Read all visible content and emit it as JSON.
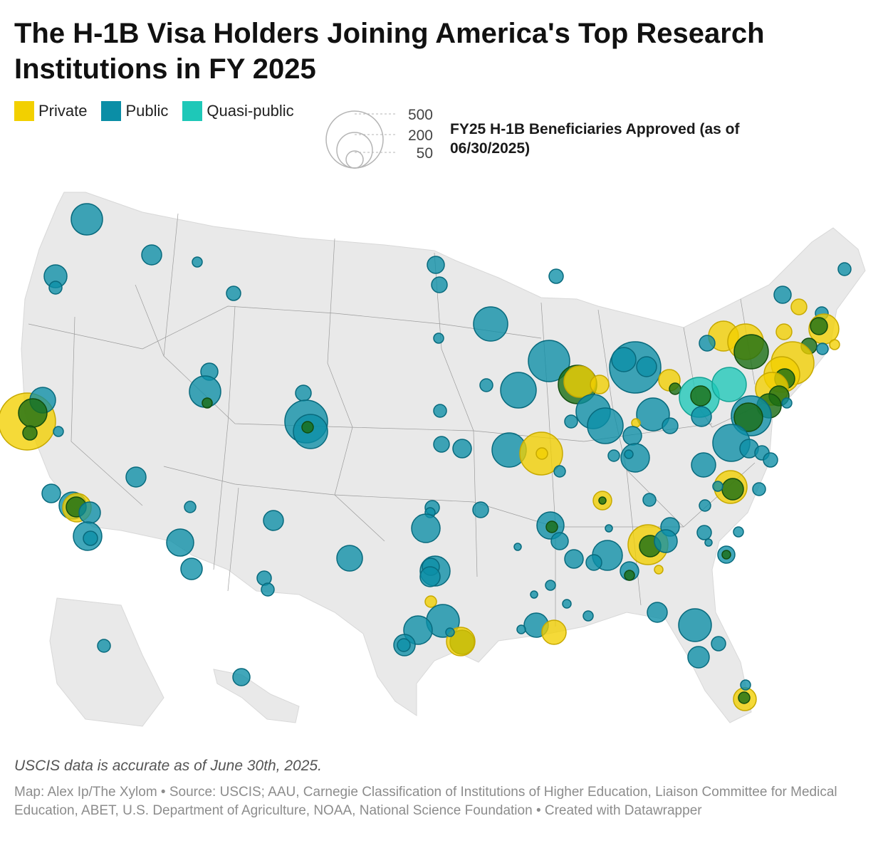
{
  "title": "The H-1B Visa Holders Joining America's Top Research Institutions in FY 2025",
  "legend": {
    "categories": [
      {
        "label": "Private",
        "color": "#f2d000"
      },
      {
        "label": "Public",
        "color": "#0b8ea6"
      },
      {
        "label": "Quasi-public",
        "color": "#1ec8b8"
      }
    ],
    "size": {
      "title": "FY25 H-1B Beneficiaries Approved (as of 06/30/2025)",
      "values": [
        "500",
        "200",
        "50"
      ]
    }
  },
  "map": {
    "land_color": "#e9e9e9",
    "border_color": "#9b9b9b",
    "overlap_color": "#1a6e14"
  },
  "note": "USCIS data is accurate as of June 30th, 2025.",
  "source": "Map: Alex Ip/The Xylom • Source: USCIS; AAU, Carnegie Classification of Institutions of Higher Education, Liaison Committee for Medical Education, ABET, U.S. Department of Agriculture, NOAA, National Science Foundation • Created with Datawrapper"
}
